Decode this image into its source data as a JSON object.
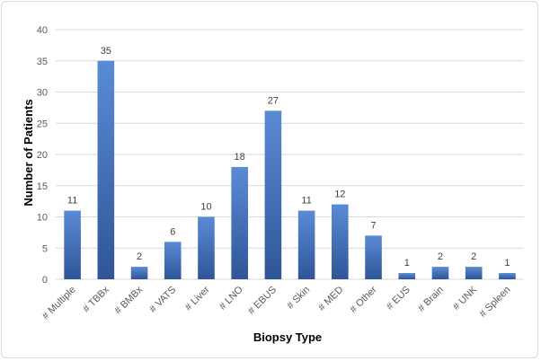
{
  "chart_data": {
    "type": "bar",
    "xlabel": "Biopsy Type",
    "ylabel": "Number of Patients",
    "ylim": [
      0,
      40
    ],
    "yticks": [
      0,
      5,
      10,
      15,
      20,
      25,
      30,
      35,
      40
    ],
    "grid": true,
    "legend": "none",
    "bar_color": "#4472c4",
    "categories": [
      "# Multiple",
      "# TBBx",
      "# BMBx",
      "# VATS",
      "# Liver",
      "# LNO",
      "# EBUS",
      "# Skin",
      "# MED",
      "# Other",
      "# EUS",
      "# Brain",
      "# UNK",
      "# Spleen"
    ],
    "values": [
      11,
      35,
      2,
      6,
      10,
      18,
      27,
      11,
      12,
      7,
      1,
      2,
      2,
      1
    ]
  }
}
